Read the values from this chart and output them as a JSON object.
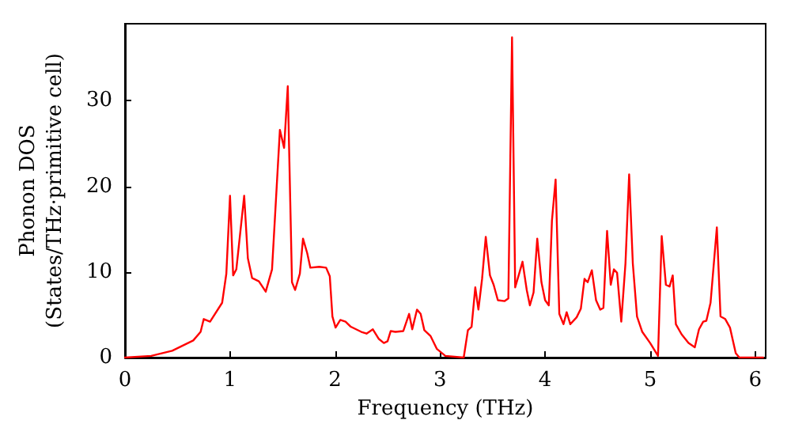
{
  "chart_data": {
    "type": "line",
    "xlabel": "Frequency (THz)",
    "ylabel": "Phonon DOS\n(States/THz·primitive cell)",
    "xlim": [
      0,
      6.1
    ],
    "xticks": [
      0,
      1,
      2,
      3,
      4,
      5,
      6
    ],
    "ylim": [
      0,
      39
    ],
    "yticks": [
      0,
      10,
      20,
      30
    ],
    "grid": false,
    "marker": "none",
    "line_style": "solid",
    "series": [
      {
        "color": "#ff0000",
        "x": [
          0,
          0.25,
          0.45,
          0.65,
          0.72,
          0.75,
          0.81,
          0.925,
          0.965,
          1.0,
          1.03,
          1.06,
          1.135,
          1.17,
          1.21,
          1.275,
          1.34,
          1.4,
          1.475,
          1.515,
          1.55,
          1.59,
          1.62,
          1.665,
          1.695,
          1.735,
          1.765,
          1.85,
          1.915,
          1.95,
          1.975,
          2.005,
          2.05,
          2.1,
          2.15,
          2.25,
          2.3,
          2.36,
          2.415,
          2.465,
          2.5,
          2.53,
          2.575,
          2.65,
          2.705,
          2.735,
          2.78,
          2.815,
          2.85,
          2.91,
          2.97,
          3.05,
          3.225,
          3.265,
          3.3,
          3.335,
          3.365,
          3.4,
          3.435,
          3.475,
          3.51,
          3.55,
          3.615,
          3.65,
          3.685,
          3.715,
          3.755,
          3.785,
          3.825,
          3.855,
          3.89,
          3.925,
          3.965,
          4.0,
          4.035,
          4.065,
          4.1,
          4.135,
          4.175,
          4.205,
          4.24,
          4.3,
          4.34,
          4.375,
          4.405,
          4.445,
          4.485,
          4.525,
          4.555,
          4.59,
          4.625,
          4.655,
          4.685,
          4.725,
          4.765,
          4.8,
          4.835,
          4.875,
          4.925,
          5.0,
          5.075,
          5.11,
          5.15,
          5.185,
          5.215,
          5.245,
          5.3,
          5.365,
          5.425,
          5.465,
          5.505,
          5.535,
          5.575,
          5.635,
          5.67,
          5.715,
          5.76,
          5.815,
          5.85,
          6.075
        ],
        "values": [
          0,
          0.2,
          0.8,
          2.0,
          3.0,
          4.5,
          4.2,
          6.4,
          9.8,
          18.9,
          9.6,
          10.3,
          18.9,
          11.6,
          9.3,
          8.9,
          7.7,
          10.3,
          26.6,
          24.5,
          31.7,
          8.8,
          7.9,
          9.8,
          13.9,
          12.2,
          10.5,
          10.6,
          10.5,
          9.5,
          4.8,
          3.5,
          4.4,
          4.2,
          3.6,
          3.0,
          2.8,
          3.3,
          2.2,
          1.7,
          1.9,
          3.1,
          3.0,
          3.1,
          5.1,
          3.3,
          5.6,
          5.1,
          3.2,
          2.5,
          1.0,
          0.2,
          0,
          3.2,
          3.6,
          8.2,
          5.6,
          9.2,
          14.1,
          9.6,
          8.5,
          6.7,
          6.6,
          6.9,
          37.4,
          8.2,
          9.9,
          11.2,
          7.9,
          6.1,
          7.6,
          13.9,
          8.8,
          6.7,
          6.1,
          16.0,
          20.8,
          5.1,
          3.9,
          5.3,
          3.9,
          4.7,
          5.7,
          9.2,
          8.8,
          10.2,
          6.7,
          5.6,
          5.8,
          14.8,
          8.5,
          10.3,
          9.9,
          4.2,
          11.0,
          21.4,
          11.0,
          4.8,
          3.0,
          1.7,
          0.2,
          14.2,
          8.5,
          8.3,
          9.6,
          3.9,
          2.7,
          1.7,
          1.2,
          3.3,
          4.2,
          4.3,
          6.4,
          15.2,
          4.8,
          4.5,
          3.5,
          0.5,
          0,
          0
        ]
      }
    ]
  }
}
